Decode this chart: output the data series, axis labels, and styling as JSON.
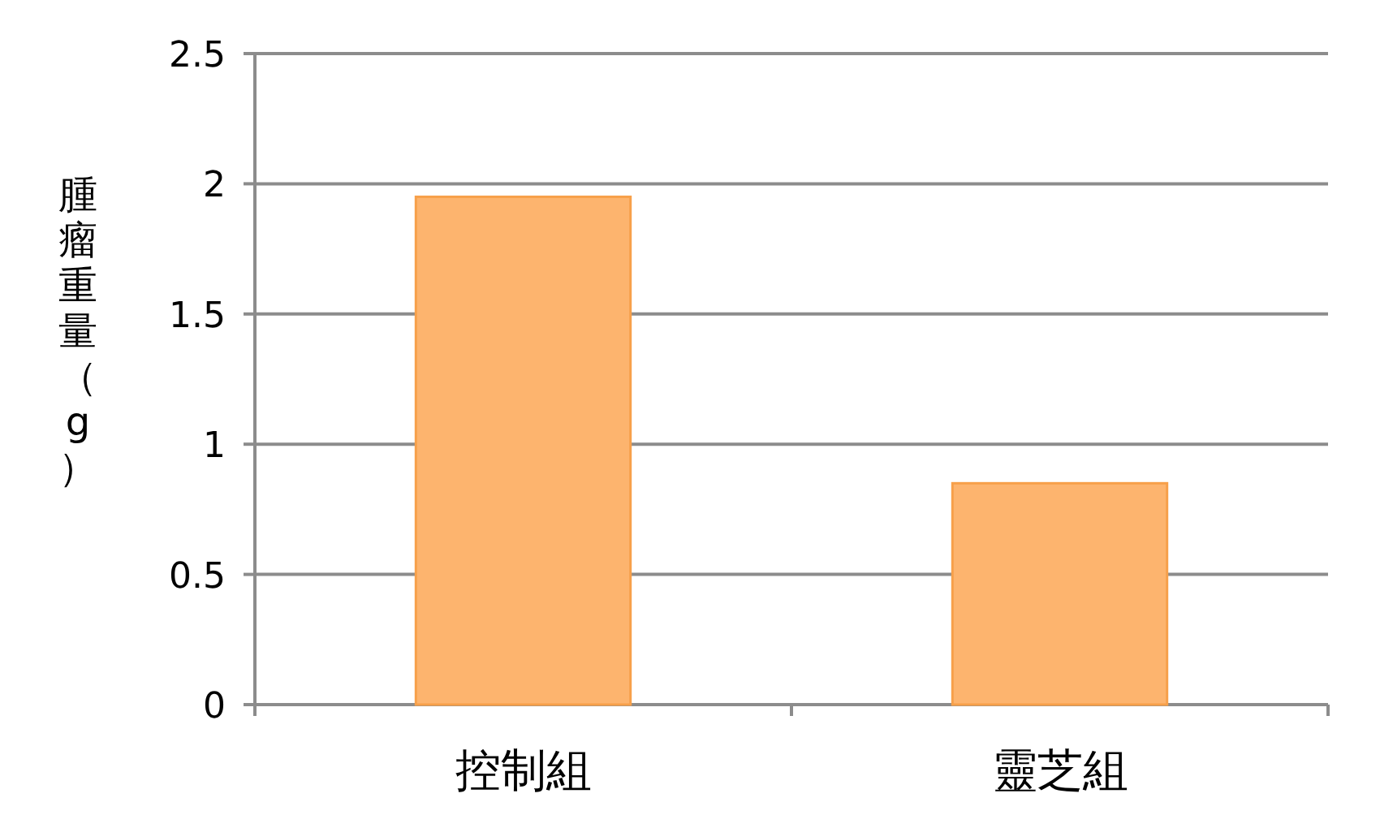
{
  "chart_data": {
    "type": "bar",
    "ylabel": "腫瘤重量（g）",
    "categories": [
      "控制組",
      "靈芝組"
    ],
    "values": [
      1.95,
      0.85
    ],
    "color": "#fdb46e",
    "ylim": [
      0,
      2.5
    ],
    "yticks": [
      0,
      0.5,
      1,
      1.5,
      2,
      2.5
    ],
    "grid": "y"
  }
}
